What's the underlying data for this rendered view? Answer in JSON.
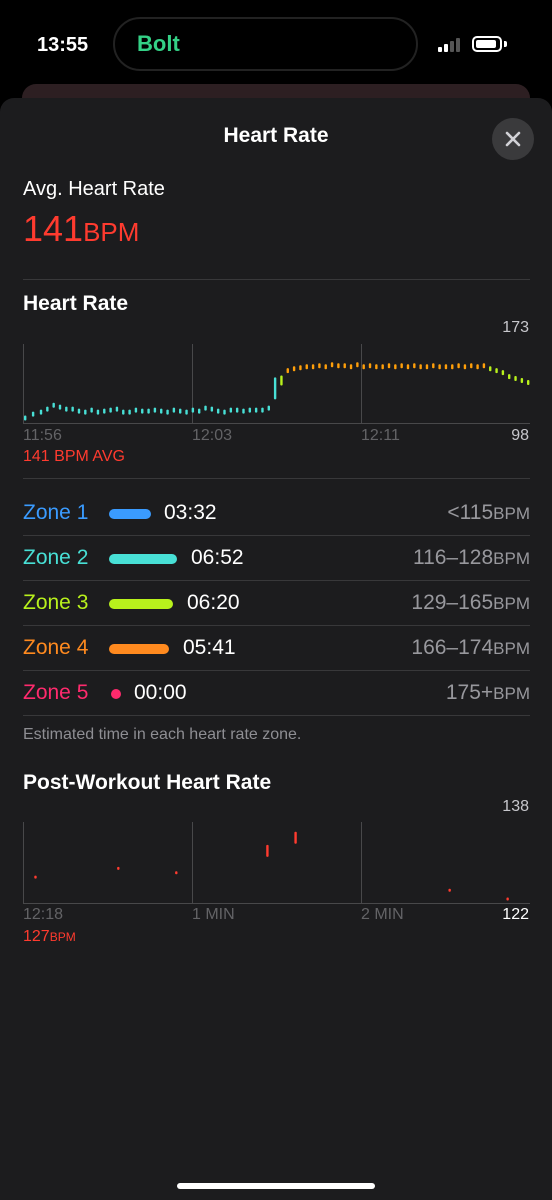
{
  "status_bar": {
    "time": "13:55",
    "island_app": "Bolt"
  },
  "sheet": {
    "title": "Heart Rate"
  },
  "avg": {
    "label": "Avg. Heart Rate",
    "value": "141",
    "unit": "BPM"
  },
  "heart_rate_section": {
    "title": "Heart Rate",
    "y_max": "173",
    "y_min": "98",
    "x_labels": [
      "11:56",
      "12:03",
      "12:11"
    ],
    "avg_note": "141 BPM AVG"
  },
  "zones": [
    {
      "name": "Zone 1",
      "time": "03:32",
      "range": "<115",
      "unit": "BPM",
      "color": "#3a9bff",
      "fraction": 0.18
    },
    {
      "name": "Zone 2",
      "time": "06:52",
      "range": "116–128",
      "unit": "BPM",
      "color": "#48e0d6",
      "fraction": 0.35
    },
    {
      "name": "Zone 3",
      "time": "06:20",
      "range": "129–165",
      "unit": "BPM",
      "color": "#b8f11c",
      "fraction": 0.32
    },
    {
      "name": "Zone 4",
      "time": "05:41",
      "range": "166–174",
      "unit": "BPM",
      "color": "#ff8a1f",
      "fraction": 0.29
    },
    {
      "name": "Zone 5",
      "time": "00:00",
      "range": "175+",
      "unit": "BPM",
      "color": "#ff2a6d",
      "fraction": 0.0
    }
  ],
  "zones_footnote": "Estimated time in each heart rate zone.",
  "post_workout": {
    "title": "Post-Workout Heart Rate",
    "y_max": "138",
    "y_min": "122",
    "x_labels": [
      "12:18",
      "1 MIN",
      "2 MIN"
    ],
    "value": "127",
    "unit": "BPM"
  },
  "chart_data": [
    {
      "type": "scatter",
      "title": "Heart Rate",
      "ylim": [
        98,
        173
      ],
      "x_ticks": [
        "11:56",
        "12:03",
        "12:11"
      ],
      "series": [
        {
          "x": [
            0.0,
            0.5,
            1.0,
            1.4,
            1.8,
            2.2,
            2.6,
            3.0,
            3.4,
            3.8,
            4.2,
            4.6,
            5.0,
            5.4,
            5.8,
            6.2,
            6.6,
            7.0,
            7.4,
            7.8,
            8.2,
            8.6,
            9.0,
            9.4,
            9.8,
            10.2,
            10.6,
            11.0,
            11.4,
            11.8,
            12.2,
            12.6,
            13.0,
            13.4,
            13.8,
            14.2,
            14.6,
            15.0,
            15.4,
            15.8,
            16.2,
            16.6,
            17.0,
            17.4,
            17.8,
            18.2,
            18.6,
            19.0,
            19.4,
            19.8,
            20.2,
            20.6,
            21.0,
            21.4,
            21.8,
            22.2,
            22.6,
            23.0,
            23.4,
            23.8,
            24.2,
            24.6,
            25.0,
            25.4,
            25.8,
            26.2,
            26.6,
            27.0,
            27.4,
            27.8,
            28.2,
            28.6,
            29.0,
            29.4,
            29.8,
            30.2,
            30.6,
            31.0,
            31.4,
            31.8
          ],
          "y": [
            100,
            104,
            106,
            109,
            113,
            111,
            109,
            109,
            107,
            106,
            108,
            106,
            107,
            108,
            109,
            106,
            106,
            108,
            107,
            107,
            108,
            107,
            106,
            108,
            107,
            106,
            108,
            107,
            110,
            109,
            107,
            106,
            108,
            108,
            107,
            108,
            108,
            108,
            110,
            130,
            138,
            148,
            150,
            151,
            152,
            152,
            153,
            152,
            154,
            153,
            153,
            152,
            154,
            152,
            153,
            152,
            152,
            153,
            152,
            153,
            152,
            153,
            152,
            152,
            153,
            152,
            152,
            152,
            153,
            152,
            153,
            152,
            153,
            150,
            148,
            146,
            142,
            140,
            138,
            136
          ]
        }
      ]
    },
    {
      "type": "scatter",
      "title": "Post-Workout Heart Rate",
      "ylim": [
        122,
        138
      ],
      "x_ticks": [
        "12:18",
        "1 MIN",
        "2 MIN"
      ],
      "series": [
        {
          "x": [
            0.05,
            0.55,
            0.9,
            1.45,
            1.62,
            2.55,
            2.9
          ],
          "y": [
            127,
            129,
            128,
            133,
            136,
            124,
            122
          ]
        }
      ]
    }
  ]
}
